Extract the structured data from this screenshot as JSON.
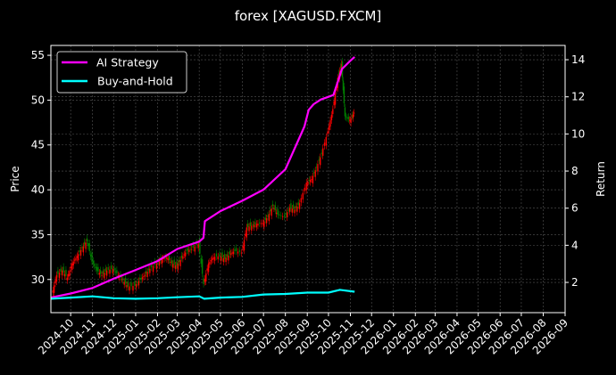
{
  "chart_data": {
    "type": "line",
    "title": "forex [XAGUSD.FXCM]",
    "ylabel": "Price",
    "y2label": "Return",
    "xlim": [
      "2024-09-03",
      "2026-09-01"
    ],
    "ylim": [
      26.3,
      56.1
    ],
    "y2lim": [
      0.37,
      14.77
    ],
    "x_ticks": [
      "2024-10",
      "2024-11",
      "2024-12",
      "2025-01",
      "2025-02",
      "2025-03",
      "2025-04",
      "2025-05",
      "2025-06",
      "2025-07",
      "2025-08",
      "2025-09",
      "2025-10",
      "2025-11",
      "2025-12",
      "2026-01",
      "2026-02",
      "2026-03",
      "2026-04",
      "2026-05",
      "2026-06",
      "2026-07",
      "2026-08",
      "2026-09"
    ],
    "y_ticks": [
      30,
      35,
      40,
      45,
      50,
      55
    ],
    "y2_ticks": [
      2,
      4,
      6,
      8,
      10,
      12,
      14
    ],
    "grid": true,
    "legend_placement": "top-left",
    "colors": {
      "up": "#ff0000",
      "down": "#008000",
      "ai": "#ff00ff",
      "bh": "#00ffff",
      "background": "#000000",
      "text": "#ffffff"
    },
    "price": {
      "dates": [
        "2024-09-05",
        "2024-09-12",
        "2024-09-20",
        "2024-09-27",
        "2024-10-04",
        "2024-10-11",
        "2024-10-18",
        "2024-10-25",
        "2024-11-01",
        "2024-11-08",
        "2024-11-15",
        "2024-11-22",
        "2024-12-01",
        "2024-12-08",
        "2024-12-15",
        "2024-12-22",
        "2025-01-01",
        "2025-01-08",
        "2025-01-15",
        "2025-01-22",
        "2025-02-01",
        "2025-02-08",
        "2025-02-15",
        "2025-02-22",
        "2025-03-01",
        "2025-03-08",
        "2025-03-15",
        "2025-03-22",
        "2025-04-01",
        "2025-04-08",
        "2025-04-15",
        "2025-04-22",
        "2025-05-01",
        "2025-05-08",
        "2025-05-15",
        "2025-05-22",
        "2025-06-01",
        "2025-06-08",
        "2025-06-15",
        "2025-06-22",
        "2025-07-01",
        "2025-07-08",
        "2025-07-15",
        "2025-07-22",
        "2025-08-01",
        "2025-08-08",
        "2025-08-15",
        "2025-08-22",
        "2025-09-01",
        "2025-09-08",
        "2025-09-15",
        "2025-09-22",
        "2025-10-01",
        "2025-10-08",
        "2025-10-15",
        "2025-10-20",
        "2025-10-25",
        "2025-11-01",
        "2025-11-07"
      ],
      "close": [
        28.2,
        30.5,
        31.0,
        30.2,
        31.8,
        32.6,
        33.5,
        34.3,
        32.0,
        31.0,
        30.5,
        31.0,
        31.2,
        30.5,
        29.9,
        29.2,
        29.3,
        30.0,
        30.5,
        31.2,
        31.8,
        32.3,
        32.5,
        31.8,
        31.5,
        32.4,
        33.2,
        33.4,
        34.0,
        29.5,
        31.8,
        32.5,
        32.6,
        32.3,
        32.8,
        33.2,
        33.0,
        35.8,
        36.0,
        36.2,
        36.3,
        37.0,
        38.2,
        37.2,
        37.0,
        38.0,
        37.8,
        38.5,
        40.8,
        41.2,
        42.5,
        44.0,
        46.5,
        49.0,
        52.5,
        54.0,
        48.2,
        47.8,
        48.6
      ]
    },
    "series": [
      {
        "name": "AI Strategy",
        "axis": "right",
        "dates": [
          "2024-09-03",
          "2024-10-01",
          "2024-11-01",
          "2024-12-01",
          "2025-01-01",
          "2025-02-01",
          "2025-03-01",
          "2025-04-01",
          "2025-04-07",
          "2025-04-09",
          "2025-05-01",
          "2025-06-01",
          "2025-07-01",
          "2025-08-01",
          "2025-08-28",
          "2025-09-03",
          "2025-09-10",
          "2025-09-20",
          "2025-10-01",
          "2025-10-08",
          "2025-10-15",
          "2025-10-20",
          "2025-11-01",
          "2025-11-07"
        ],
        "values": [
          1.18,
          1.4,
          1.7,
          2.2,
          2.67,
          3.15,
          3.8,
          4.2,
          4.4,
          5.3,
          5.84,
          6.4,
          7.0,
          8.1,
          10.4,
          11.3,
          11.6,
          11.85,
          12.0,
          12.1,
          12.9,
          13.5,
          13.95,
          14.15
        ]
      },
      {
        "name": "Buy-and-Hold",
        "axis": "right",
        "dates": [
          "2024-09-03",
          "2024-10-01",
          "2024-11-01",
          "2024-12-01",
          "2025-01-01",
          "2025-02-01",
          "2025-03-01",
          "2025-04-01",
          "2025-04-08",
          "2025-05-01",
          "2025-06-01",
          "2025-07-01",
          "2025-08-01",
          "2025-09-01",
          "2025-10-01",
          "2025-10-17",
          "2025-11-07"
        ],
        "values": [
          1.12,
          1.18,
          1.25,
          1.15,
          1.12,
          1.15,
          1.2,
          1.25,
          1.12,
          1.18,
          1.22,
          1.35,
          1.38,
          1.45,
          1.45,
          1.6,
          1.5
        ]
      }
    ]
  }
}
